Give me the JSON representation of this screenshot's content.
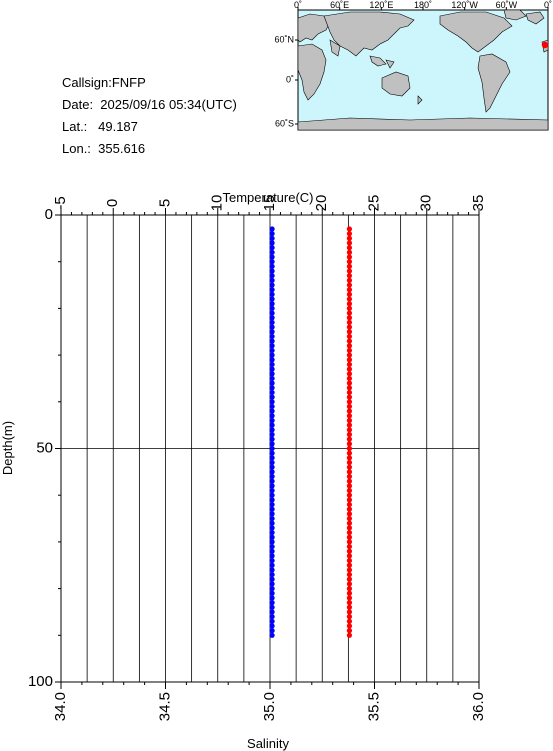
{
  "info": {
    "callsign": "Callsign:FNFP",
    "date": "Date:  2025/09/16 05:34(UTC)",
    "lat": "Lat.:   49.187",
    "lon": "Lon.:  355.616"
  },
  "map": {
    "top_ticks": [
      "0˚",
      "60˚E",
      "120˚E",
      "180˚",
      "120˚W",
      "60˚W",
      "0˚"
    ],
    "left_ticks": [
      "60˚N",
      "0˚",
      "60˚S"
    ],
    "colors": {
      "ocean": "#ccf5fc",
      "land": "#c0c0c0",
      "marker": "#ff0000"
    }
  },
  "chart_data": {
    "type": "scatter",
    "xlabel_top": "Temperature(C)",
    "xlabel_bottom": "Salinity",
    "ylabel": "Depth(m)",
    "temperature_axis": {
      "range": [
        -5,
        35
      ],
      "ticks": [
        -5,
        0,
        5,
        10,
        15,
        20,
        25,
        30,
        35
      ]
    },
    "salinity_axis": {
      "range": [
        34.0,
        36.0
      ],
      "ticks": [
        "34.0",
        "34.5",
        "35.0",
        "35.5",
        "36.0"
      ]
    },
    "depth_axis": {
      "range": [
        0,
        100
      ],
      "ticks": [
        0,
        50,
        100
      ],
      "inverted": true
    },
    "series": [
      {
        "axis": "temperature",
        "color": "#ff0000",
        "value": 22.6,
        "depth_start": 3,
        "depth_end": 90
      },
      {
        "axis": "salinity",
        "color": "#0000ff",
        "value": 35.01,
        "depth_start": 3,
        "depth_end": 90
      }
    ]
  }
}
